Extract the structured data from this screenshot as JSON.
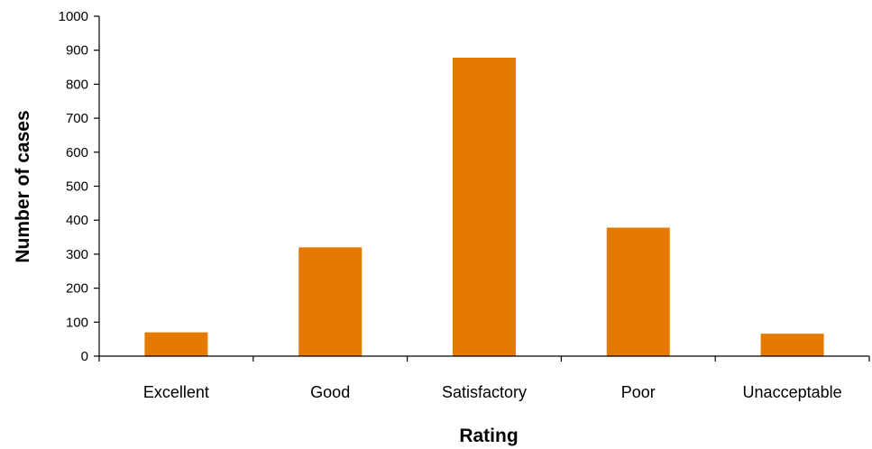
{
  "chart_data": {
    "type": "bar",
    "title": "",
    "xlabel": "Rating",
    "ylabel": "Number of cases",
    "categories": [
      "Excellent",
      "Good",
      "Satisfactory",
      "Poor",
      "Unacceptable"
    ],
    "values": [
      70,
      320,
      878,
      378,
      66
    ],
    "ylim": [
      0,
      1000
    ],
    "yticks": [
      0,
      100,
      200,
      300,
      400,
      500,
      600,
      700,
      800,
      900,
      1000
    ],
    "grid": false,
    "legend": "none",
    "bar_color": "#E57A00"
  }
}
